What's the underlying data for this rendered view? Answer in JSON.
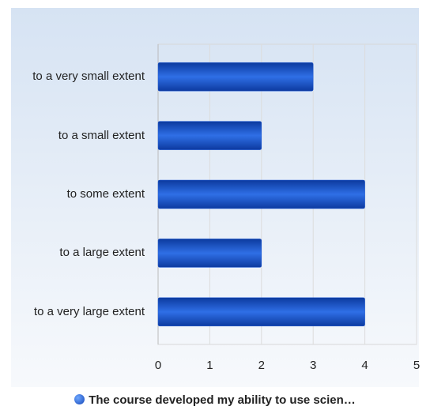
{
  "chart_data": {
    "type": "bar",
    "orientation": "horizontal",
    "categories": [
      "to a very small extent",
      "to a small extent",
      "to some extent",
      "to a large extent",
      "to a very large extent"
    ],
    "series": [
      {
        "name": "The course developed my ability to use scien…",
        "color": "#1f5bd6",
        "values": [
          3,
          2,
          4,
          2,
          4
        ]
      }
    ],
    "xlim": [
      0,
      5
    ],
    "xticks": [
      0,
      1,
      2,
      3,
      4,
      5
    ],
    "grid": true
  }
}
